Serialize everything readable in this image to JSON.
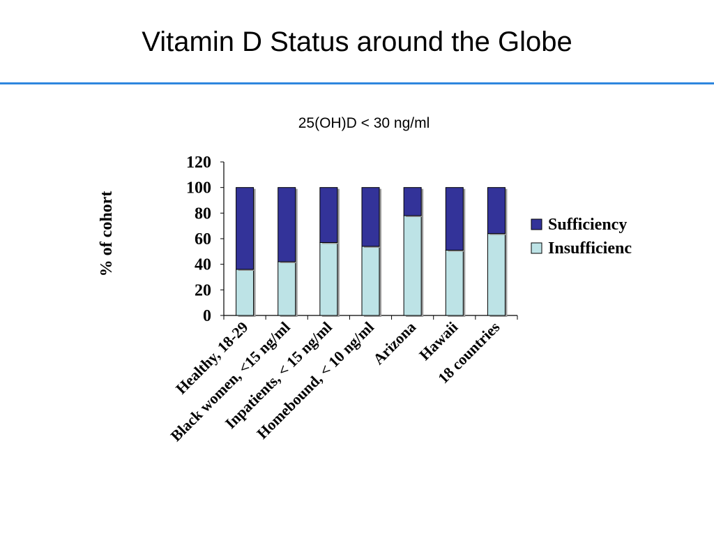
{
  "slide": {
    "title": "Vitamin D Status around the Globe",
    "subtitle": "25(OH)D < 30 ng/ml"
  },
  "chart_data": {
    "type": "bar",
    "stacked": true,
    "categories": [
      "Healthy, 18-29",
      "Black women, <15 ng/ml",
      "Inpatients, < 15 ng/ml",
      "Homebound, < 10 ng/ml",
      "Arizona",
      "Hawaii",
      "18 countries"
    ],
    "series": [
      {
        "name": "Insufficienc",
        "color": "#bde3e6",
        "values": [
          36,
          42,
          57,
          54,
          78,
          51,
          64
        ]
      },
      {
        "name": "Sufficiency",
        "color": "#333399",
        "values": [
          64,
          58,
          43,
          46,
          22,
          49,
          36
        ]
      }
    ],
    "ylabel": "% of cohort",
    "ylim": [
      0,
      120
    ],
    "yticks": [
      0,
      20,
      40,
      60,
      80,
      100,
      120
    ],
    "legend": "right",
    "grid": false
  }
}
